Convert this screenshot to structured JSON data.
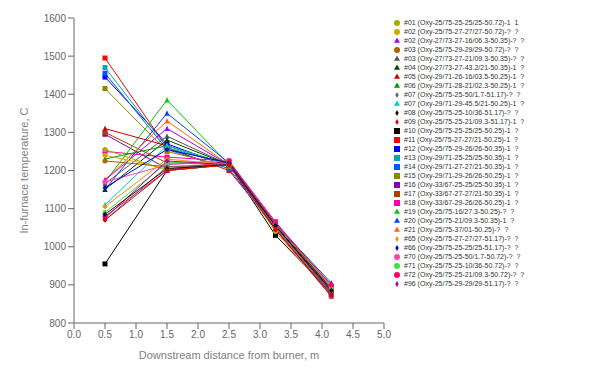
{
  "chart_data": {
    "type": "line",
    "xlabel": "Downstream distance from burner, m",
    "ylabel": "In-furnace temperature, C",
    "x": [
      0.5,
      1.5,
      2.5,
      3.25,
      4.15
    ],
    "xlim": [
      0.0,
      5.0
    ],
    "ylim": [
      800,
      1600
    ],
    "xticks": [
      {
        "value": 0,
        "label": "0.0"
      },
      0.5,
      {
        "value": 1,
        "label": "1.0"
      },
      1.5,
      {
        "value": 2,
        "label": "2.0"
      },
      2.5,
      {
        "value": 3,
        "label": "3.0"
      },
      3.5,
      {
        "value": 4,
        "label": "4.0"
      },
      4.5,
      {
        "value": 5,
        "label": "5.0"
      }
    ],
    "yticks": [
      800,
      900,
      1000,
      1100,
      1200,
      1300,
      1400,
      1500,
      1600
    ],
    "grid": false,
    "legend": "right",
    "series": [
      {
        "name": "#10 (Oxy-25/75-25-25/25-50.25)-1  ?",
        "color": "#000000",
        "marker": "square",
        "values": [
          955,
          1200,
          1215,
          1030,
          880
        ]
      },
      {
        "name": "#11 (Oxy-25/75-27-27/21-50.25)-1  ?",
        "color": "#ff0000",
        "marker": "square",
        "values": [
          1495,
          1260,
          1200,
          1050,
          870
        ]
      },
      {
        "name": "#12 (Oxy-25/75-29-26/26-50.35)-1  ?",
        "color": "#0000ff",
        "marker": "square",
        "values": [
          1445,
          1270,
          1210,
          1060,
          890
        ]
      },
      {
        "name": "#13 (Oxy-29/71-25-25/25-50.35)-1  ?",
        "color": "#00aaaa",
        "marker": "square",
        "values": [
          1470,
          1260,
          1215,
          1055,
          885
        ]
      },
      {
        "name": "#14 (Oxy-29/71-27-27/21-50.35)-1  ?",
        "color": "#0055ff",
        "marker": "square",
        "values": [
          1455,
          1255,
          1205,
          1045,
          880
        ]
      },
      {
        "name": "#15 (Oxy-29/71-29-26/26-50.25)-1  ?",
        "color": "#888800",
        "marker": "square",
        "values": [
          1415,
          1250,
          1210,
          1060,
          895
        ]
      },
      {
        "name": "#16 (Oxy-33/67-25-25/25-50.35)-1  ?",
        "color": "#8800aa",
        "marker": "square",
        "values": [
          1295,
          1205,
          1215,
          1055,
          875
        ]
      },
      {
        "name": "#17 (Oxy-33/67-27-27/21-50.35)-1  ?",
        "color": "#aa4400",
        "marker": "square",
        "values": [
          1300,
          1220,
          1215,
          1065,
          885
        ]
      },
      {
        "name": "#18 (Oxy-33/67-29-26/26-50.25)-1  ?",
        "color": "#ff00aa",
        "marker": "square",
        "values": [
          1250,
          1235,
          1225,
          1065,
          895
        ]
      },
      {
        "name": "#19 (Oxy-25/75-16/27.3-50.25)-?  ?",
        "color": "#00cc00",
        "marker": "triangle",
        "values": [
          1170,
          1385,
          1215,
          1045,
          895
        ]
      },
      {
        "name": "#20 (Oxy-25/75-21/09.3-50.35)-1  ?",
        "color": "#0044ff",
        "marker": "triangle",
        "values": [
          1150,
          1350,
          1220,
          1060,
          905
        ]
      },
      {
        "name": "#21 (Oxy-25/75-37/01-50.25)-?  ?",
        "color": "#ff6600",
        "marker": "triangle",
        "values": [
          1175,
          1330,
          1215,
          1050,
          900
        ]
      },
      {
        "name": "#02 (Oxy-27/73-27-16/06.3-50.35)-?  ?",
        "color": "#aa00ff",
        "marker": "triangle",
        "values": [
          1175,
          1310,
          1215,
          1045,
          890
        ]
      },
      {
        "name": "#03 (Oxy-27/73-27-21/09.3-50.35)-?  ?",
        "color": "#555555",
        "marker": "triangle",
        "values": [
          1165,
          1290,
          1215,
          1050,
          880
        ]
      },
      {
        "name": "#04 (Oxy-27/73-27-43.2/21-50.35)-1  ?",
        "color": "#004400",
        "marker": "triangle",
        "values": [
          1150,
          1280,
          1215,
          1055,
          885
        ]
      },
      {
        "name": "#05 (Oxy-29/71-26-16/03.5-50.25)-1  ?",
        "color": "#cc0000",
        "marker": "triangle",
        "values": [
          1310,
          1265,
          1215,
          1060,
          890
        ]
      },
      {
        "name": "#06 (Oxy-29/71-28-21/02.3-50.25)-1  ?",
        "color": "#009900",
        "marker": "triangle",
        "values": [
          1230,
          1265,
          1215,
          1045,
          880
        ]
      },
      {
        "name": "#07 (Oxy-29/71-29-45.5/21-50.25)-1  ?",
        "color": "#00cccc",
        "marker": "triangle",
        "values": [
          1110,
          1265,
          1215,
          1055,
          880
        ]
      },
      {
        "name": "#01 (Oxy-25/75-25-25/25-50.72)-1  1",
        "color": "#aaaa00",
        "marker": "circle",
        "values": [
          1255,
          1200,
          1215,
          1045,
          875
        ]
      },
      {
        "name": "#02 (Oxy-25/75-27-27/27-50.72)-?  ?",
        "color": "#ccaa00",
        "marker": "circle",
        "values": [
          1240,
          1205,
          1215,
          1040,
          870
        ]
      },
      {
        "name": "#03 (Oxy-25/75-29-29/29-50.72)-?  ?",
        "color": "#aa6600",
        "marker": "circle",
        "values": [
          1225,
          1210,
          1215,
          1045,
          875
        ]
      },
      {
        "name": "#70 (Oxy-25/75-25-50/1.7-50.72)-?  ?",
        "color": "#ff44aa",
        "marker": "circle",
        "values": [
          1170,
          1215,
          1225,
          1050,
          885
        ]
      },
      {
        "name": "#71 (Oxy-25/75-25-10/36-50.72)-?  ?",
        "color": "#44dd44",
        "marker": "circle",
        "values": [
          1090,
          1220,
          1225,
          1060,
          895
        ]
      },
      {
        "name": "#72 (Oxy-25/75-25-21/09.3-50.72)-?  ?",
        "color": "#ff0066",
        "marker": "circle",
        "values": [
          1080,
          1200,
          1225,
          1060,
          900
        ]
      },
      {
        "name": "#66 (Oxy-25/75-25-25/25-51.17)-?  ?",
        "color": "#0000cc",
        "marker": "diamond",
        "values": [
          1155,
          1255,
          1220,
          1055,
          880
        ]
      },
      {
        "name": "#65 (Oxy-25/75-27-27/27-51.17)-?  ?",
        "color": "#ff8800",
        "marker": "diamond",
        "values": [
          1105,
          1230,
          1215,
          1050,
          875
        ]
      },
      {
        "name": "#96 (Oxy-25/75-29-29/29-51.17)-?  ?",
        "color": "#aa00aa",
        "marker": "diamond",
        "values": [
          1075,
          1225,
          1215,
          1045,
          870
        ]
      },
      {
        "name": "#07 (Oxy-25/75-25-50/1.7-51.17)-?  ?",
        "color": "#666666",
        "marker": "diamond",
        "values": [
          1070,
          1210,
          1215,
          1050,
          880
        ]
      },
      {
        "name": "#08 (Oxy-25/75-25-10/36-51.17)-?  ?",
        "color": "#111111",
        "marker": "diamond",
        "values": [
          1085,
          1205,
          1215,
          1055,
          885
        ]
      },
      {
        "name": "#09 (Oxy-25/75-25-21/09.3-51.17)-1  ?",
        "color": "#dd0000",
        "marker": "diamond",
        "values": [
          1070,
          1200,
          1215,
          1045,
          875
        ]
      }
    ]
  }
}
